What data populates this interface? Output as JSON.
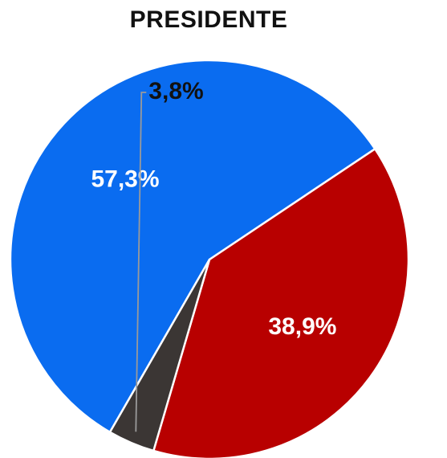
{
  "chart_data": {
    "type": "pie",
    "title": "PRESIDENTE",
    "slices": [
      {
        "value": 57.3,
        "label": "57,3%",
        "color": "#0a6cf0",
        "label_position": "inside"
      },
      {
        "value": 38.9,
        "label": "38,9%",
        "color": "#b80000",
        "label_position": "inside"
      },
      {
        "value": 3.8,
        "label": "3,8%",
        "color": "#3b3634",
        "label_position": "outside"
      }
    ],
    "start_angle_deg": 120,
    "direction": "clockwise"
  }
}
